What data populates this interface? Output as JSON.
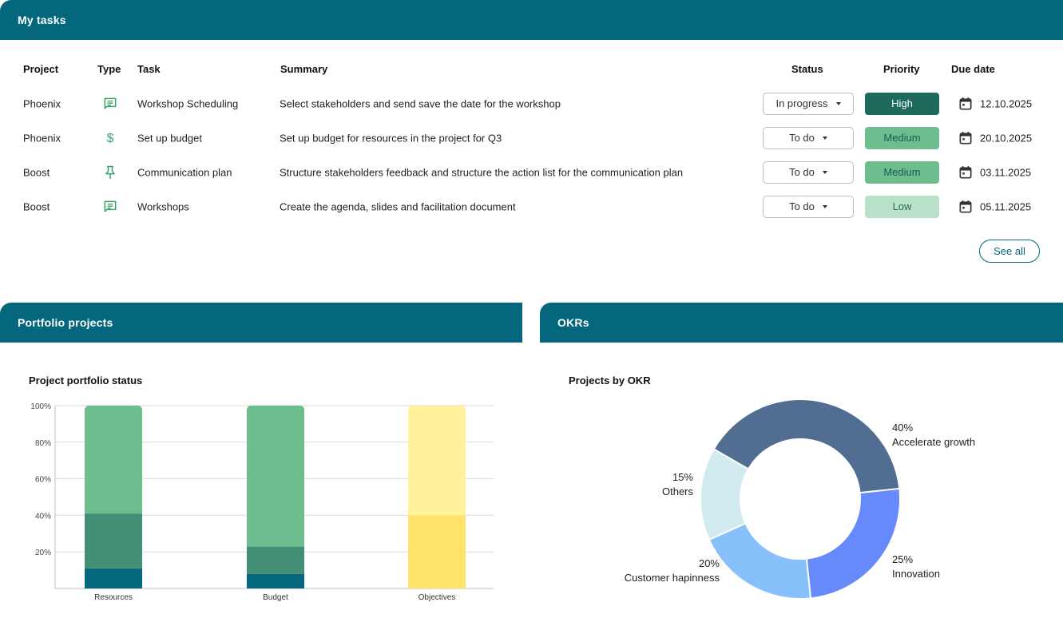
{
  "tasks_panel": {
    "title": "My tasks",
    "columns": {
      "project": "Project",
      "type": "Type",
      "task": "Task",
      "summary": "Summary",
      "status": "Status",
      "priority": "Priority",
      "due": "Due date"
    },
    "rows": [
      {
        "project": "Phoenix",
        "type_icon": "chat-icon",
        "task": "Workshop Scheduling",
        "summary": "Select stakeholders and send save the date for the workshop",
        "status": "In progress",
        "priority": "High",
        "priority_color": "#1e6b5b",
        "priority_text_color": "#ffffff",
        "due": "12.10.2025"
      },
      {
        "project": "Phoenix",
        "type_icon": "dollar-icon",
        "task": "Set up budget",
        "summary": "Set up budget for resources in the project for Q3",
        "status": "To do",
        "priority": "Medium",
        "priority_color": "#6dbd8f",
        "priority_text_color": "#1e5b4f",
        "due": "20.10.2025"
      },
      {
        "project": "Boost",
        "type_icon": "pin-icon",
        "task": "Communication plan",
        "summary": "Structure stakeholders feedback and structure the action list for the communication plan",
        "status": "To do",
        "priority": "Medium",
        "priority_color": "#6dbd8f",
        "priority_text_color": "#1e5b4f",
        "due": "03.11.2025"
      },
      {
        "project": "Boost",
        "type_icon": "chat-icon",
        "task": "Workshops",
        "summary": "Create the agenda, slides and facilitation document",
        "status": "To do",
        "priority": "Low",
        "priority_color": "#b9e0c8",
        "priority_text_color": "#2b6b55",
        "due": "05.11.2025"
      }
    ],
    "see_all_label": "See all"
  },
  "portfolio_panel": {
    "title": "Portfolio projects",
    "chart_title": "Project portfolio status"
  },
  "okr_panel": {
    "title": "OKRs",
    "chart_title": "Projects by OKR"
  },
  "chart_data": [
    {
      "type": "bar",
      "stacked": true,
      "title": "Project portfolio status",
      "categories": [
        "Resources",
        "Budget",
        "Objectives"
      ],
      "ylim": [
        0,
        100
      ],
      "y_ticks": [
        "20%",
        "40%",
        "60%",
        "80%",
        "100%"
      ],
      "grid": true,
      "segments": [
        {
          "category": "Resources",
          "values": [
            11,
            30,
            59
          ],
          "colors": [
            "#05677d",
            "#428f76",
            "#6dbd8f"
          ]
        },
        {
          "category": "Budget",
          "values": [
            8,
            15,
            77
          ],
          "colors": [
            "#05677d",
            "#428f76",
            "#6dbd8f"
          ]
        },
        {
          "category": "Objectives",
          "values": [
            40,
            60
          ],
          "colors": [
            "#fde36a",
            "#fff29a"
          ]
        }
      ]
    },
    {
      "type": "pie",
      "donut": true,
      "title": "Projects by OKR",
      "slices": [
        {
          "label": "Accelerate growth",
          "percent_label": "40%",
          "value": 40,
          "color": "#526d92"
        },
        {
          "label": "Innovation",
          "percent_label": "25%",
          "value": 25,
          "color": "#6689fb"
        },
        {
          "label": "Customer hapinness",
          "percent_label": "20%",
          "value": 20,
          "color": "#88c0fb"
        },
        {
          "label": "Others",
          "percent_label": "15%",
          "value": 15,
          "color": "#d2ebf0"
        }
      ]
    }
  ]
}
